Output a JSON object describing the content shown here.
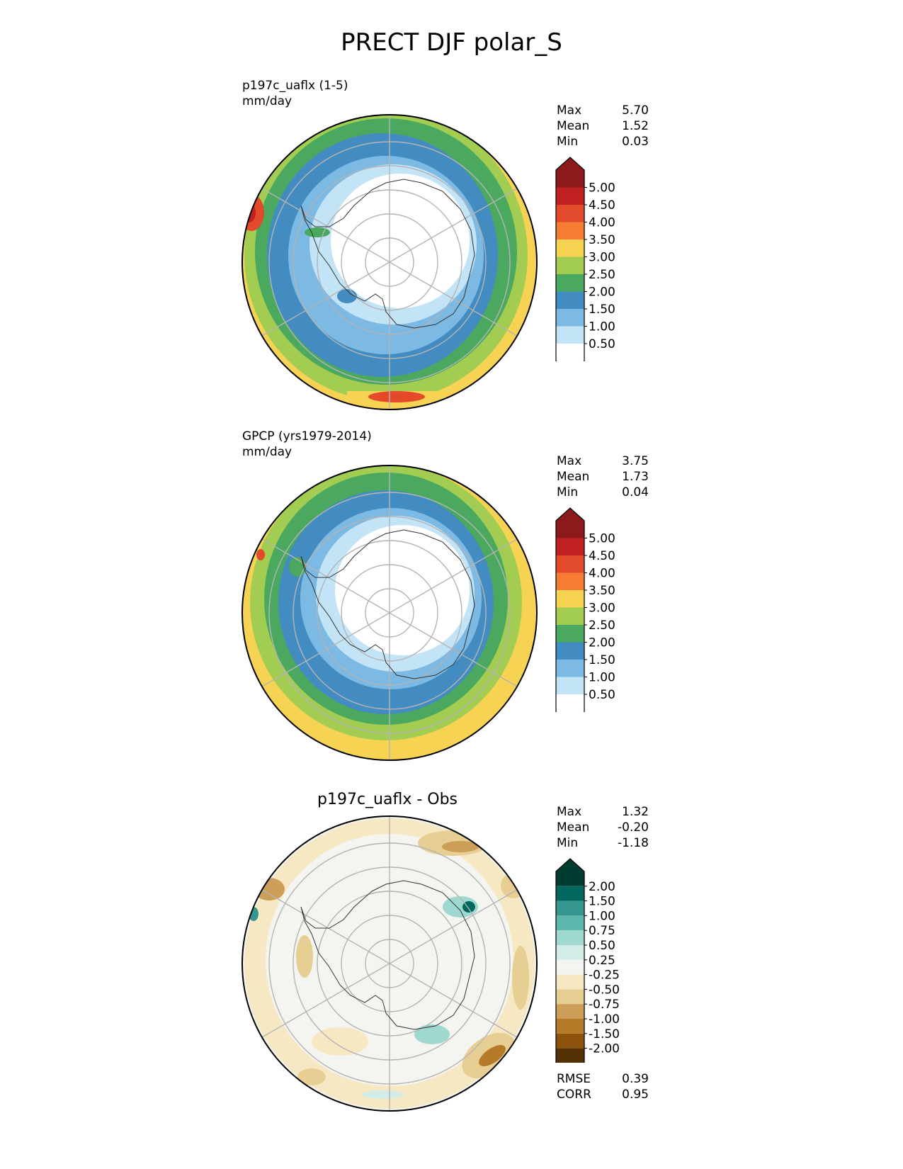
{
  "figure_title": "PRECT DJF polar_S",
  "panels": [
    {
      "title_line1": "p197c_uaflx (1-5)",
      "title_line2": "mm/day",
      "stats": [
        {
          "label": "Max",
          "value": "5.70"
        },
        {
          "label": "Mean",
          "value": "1.52"
        },
        {
          "label": "Min",
          "value": "0.03"
        }
      ],
      "colorbar": {
        "labels": [
          "5.00",
          "4.50",
          "4.00",
          "3.50",
          "3.00",
          "2.50",
          "2.00",
          "1.50",
          "1.00",
          "0.50"
        ],
        "colors": [
          "#8c1a1d",
          "#c0201f",
          "#e34a2b",
          "#f67c34",
          "#f7d354",
          "#a3cd52",
          "#4aa95e",
          "#438cc1",
          "#7cb9e3",
          "#c3e4f7",
          "#ffffff"
        ]
      }
    },
    {
      "title_line1": "GPCP (yrs1979-2014)",
      "title_line2": "mm/day",
      "stats": [
        {
          "label": "Max",
          "value": "3.75"
        },
        {
          "label": "Mean",
          "value": "1.73"
        },
        {
          "label": "Min",
          "value": "0.04"
        }
      ],
      "colorbar": {
        "labels": [
          "5.00",
          "4.50",
          "4.00",
          "3.50",
          "3.00",
          "2.50",
          "2.00",
          "1.50",
          "1.00",
          "0.50"
        ],
        "colors": [
          "#8c1a1d",
          "#c0201f",
          "#e34a2b",
          "#f67c34",
          "#f7d354",
          "#a3cd52",
          "#4aa95e",
          "#438cc1",
          "#7cb9e3",
          "#c3e4f7",
          "#ffffff"
        ]
      }
    },
    {
      "title_center": "p197c_uaflx - Obs",
      "stats": [
        {
          "label": "Max",
          "value": "1.32"
        },
        {
          "label": "Mean",
          "value": "-0.20"
        },
        {
          "label": "Min",
          "value": "-1.18"
        }
      ],
      "colorbar": {
        "labels": [
          "2.00",
          "1.50",
          "1.00",
          "0.75",
          "0.50",
          "0.25",
          "-0.25",
          "-0.50",
          "-0.75",
          "-1.00",
          "-1.50",
          "-2.00"
        ],
        "colors": [
          "#003c30",
          "#01665e",
          "#35978f",
          "#5fb8ad",
          "#9ed8cf",
          "#d4ece7",
          "#f4f4f1",
          "#f6e8c3",
          "#e7cf94",
          "#cc9e57",
          "#b57b29",
          "#8c510a",
          "#543005"
        ]
      },
      "extra_stats": [
        {
          "label": "RMSE",
          "value": "0.39"
        },
        {
          "label": "CORR",
          "value": "0.95"
        }
      ]
    }
  ]
}
